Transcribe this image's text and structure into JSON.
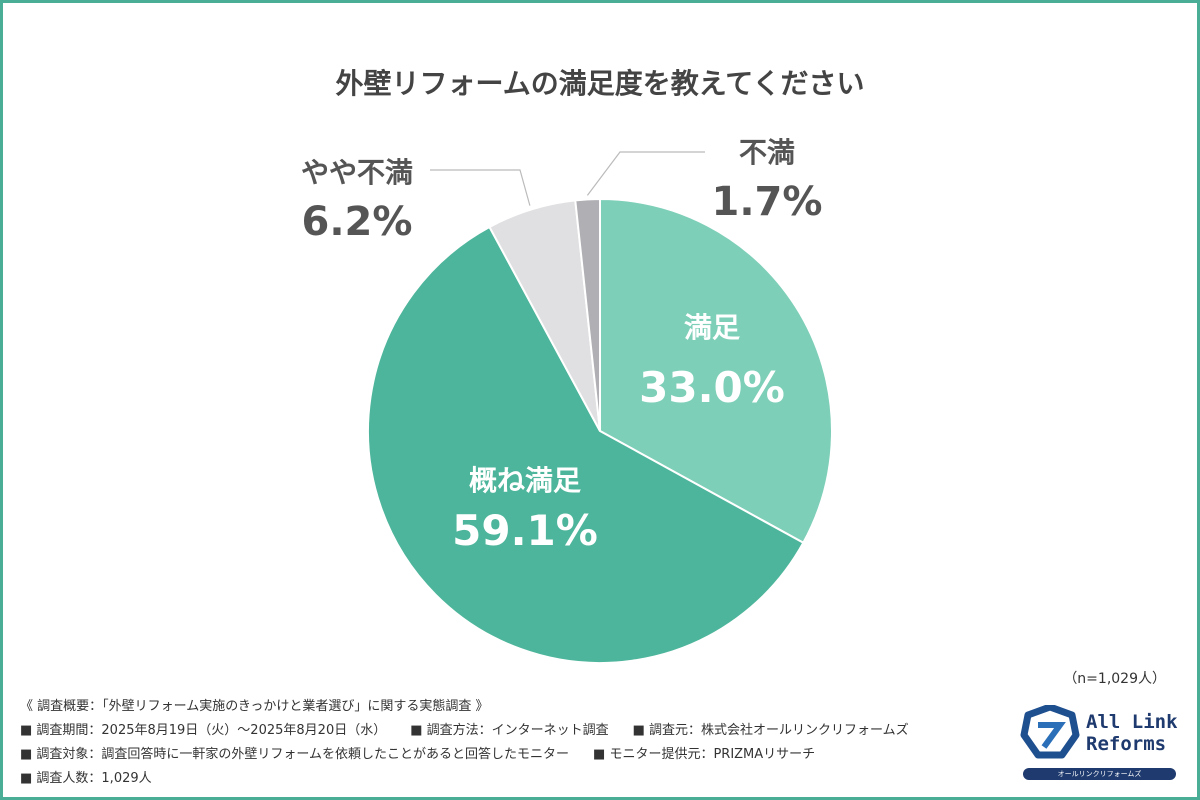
{
  "chart_data": {
    "type": "pie",
    "title": "外壁リフォームの満足度を教えてください",
    "slices": [
      {
        "label": "満足",
        "value": 33.0,
        "display": "33.0%",
        "color": "#7ecfb8"
      },
      {
        "label": "概ね満足",
        "value": 59.1,
        "display": "59.1%",
        "color": "#4db59b"
      },
      {
        "label": "やや不満",
        "value": 6.2,
        "display": "6.2%",
        "color": "#e0e0e2"
      },
      {
        "label": "不満",
        "value": 1.7,
        "display": "1.7%",
        "color": "#b0b0b4"
      }
    ],
    "start": "top",
    "direction": "clockwise"
  },
  "sample_size": "（n=1,029人）",
  "footer": {
    "heading": "《 調査概要：「外壁リフォーム実施のきっかけと業者選び」に関する実態調査 》",
    "line1": [
      "■ 調査期間：2025年8月19日（火）～2025年8月20日（水）",
      "■ 調査方法：インターネット調査",
      "■ 調査元：株式会社オールリンクリフォームズ"
    ],
    "line2": [
      "■ 調査対象：調査回答時に一軒家の外壁リフォームを依頼したことがあると回答したモニター",
      "■ モニター提供元：PRIZMAリサーチ"
    ],
    "line3": [
      "■ 調査人数：1,029人"
    ]
  },
  "logo": {
    "line1": "All Link",
    "line2": "Reforms",
    "sub": "オールリンクリフォームズ",
    "color": "#1e3a6e"
  }
}
